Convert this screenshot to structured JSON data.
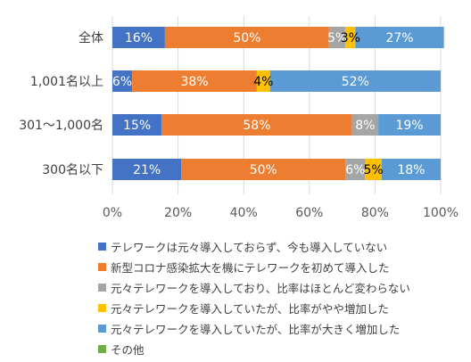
{
  "chart_data": {
    "type": "bar",
    "orientation": "horizontal",
    "stacked": true,
    "categories": [
      "全体",
      "1,001名以上",
      "301～1,000名",
      "300名以下"
    ],
    "series": [
      {
        "name": "テレワークは元々導入しておらず、今も導入していない",
        "color": "#4472C4",
        "values": [
          16,
          6,
          15,
          21
        ],
        "labels": [
          "16%",
          "6%",
          "15%",
          "21%"
        ],
        "label_color": "#ffffff"
      },
      {
        "name": "新型コロナ感染拡大を機にテレワークを初めて導入した",
        "color": "#ED7D31",
        "values": [
          50,
          38,
          58,
          50
        ],
        "labels": [
          "50%",
          "38%",
          "58%",
          "50%"
        ],
        "label_color": "#ffffff"
      },
      {
        "name": "元々テレワークを導入しており、比率はほとんど変わらない",
        "color": "#A5A5A5",
        "values": [
          5,
          0,
          8,
          6
        ],
        "labels": [
          "5%",
          "",
          "8%",
          "6%"
        ],
        "label_color": "#ffffff"
      },
      {
        "name": "元々テレワークを導入していたが、比率がやや増加した",
        "color": "#FFC000",
        "values": [
          3,
          4,
          0,
          5
        ],
        "labels": [
          "3%",
          "4%",
          "",
          "5%"
        ],
        "label_color": "#000000"
      },
      {
        "name": "元々テレワークを導入していたが、比率が大きく増加した",
        "color": "#5B9BD5",
        "values": [
          27,
          52,
          19,
          18
        ],
        "labels": [
          "27%",
          "52%",
          "19%",
          "18%"
        ],
        "label_color": "#ffffff"
      },
      {
        "name": "その他",
        "color": "#70AD47",
        "values": [
          0,
          0,
          0,
          0
        ],
        "labels": [
          "",
          "",
          "",
          ""
        ],
        "label_color": "#ffffff"
      }
    ],
    "xlim": [
      0,
      100
    ],
    "xticks": [
      "0%",
      "20%",
      "40%",
      "60%",
      "80%",
      "100%"
    ],
    "grid": true,
    "legend_position": "bottom"
  }
}
